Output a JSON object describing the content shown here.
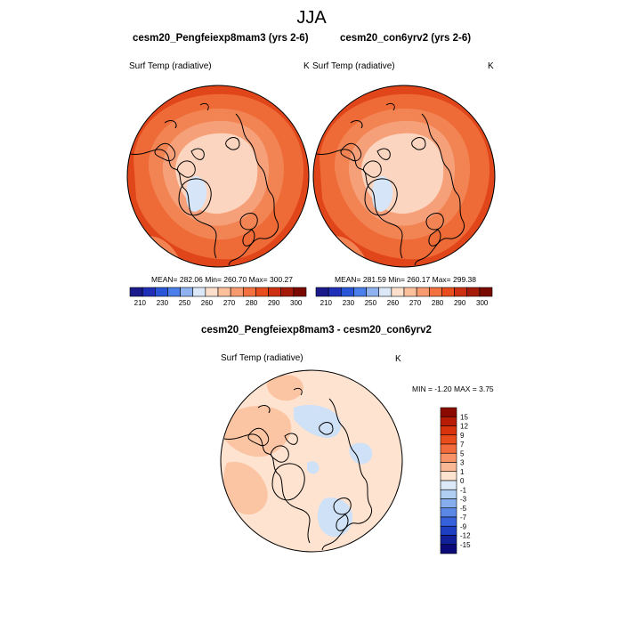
{
  "main_title": "JJA",
  "panels": [
    {
      "title": "cesm20_Pengfeiexp8mam3 (yrs 2-6)",
      "variable": "Surf Temp (radiative)",
      "units": "K",
      "stats": "MEAN= 282.06  Min= 260.70  Max= 300.27"
    },
    {
      "title": "cesm20_con6yrv2 (yrs 2-6)",
      "variable": "Surf Temp (radiative)",
      "units": "K",
      "stats": "MEAN= 281.59  Min= 260.17  Max= 299.38"
    }
  ],
  "diff_panel": {
    "title": "cesm20_Pengfeiexp8mam3 - cesm20_con6yrv2",
    "variable": "Surf Temp (radiative)",
    "units": "K",
    "minmax": "MIN =  -1.20 MAX =   3.75"
  },
  "colorbar_abs": {
    "labels": [
      "210",
      "230",
      "250",
      "260",
      "270",
      "280",
      "290",
      "300"
    ],
    "colors": [
      "#1a1a8c",
      "#1f2fb8",
      "#2a55d8",
      "#4a7ee8",
      "#8fb2f0",
      "#dbe8f8",
      "#fde0cc",
      "#fbbf9c",
      "#f79a6e",
      "#f2713f",
      "#e84d1d",
      "#cc3010",
      "#a51a08",
      "#7a0a00"
    ]
  },
  "colorbar_diff": {
    "labels": [
      "15",
      "12",
      "9",
      "7",
      "5",
      "3",
      "1",
      "0",
      "-1",
      "-3",
      "-5",
      "-7",
      "-9",
      "-12",
      "-15"
    ],
    "colors": [
      "#8b0a00",
      "#b81c05",
      "#d8330c",
      "#ea4d1c",
      "#f26b3c",
      "#f79366",
      "#fab895",
      "#fde3d0",
      "#dce9f8",
      "#b0cdf2",
      "#86aeee",
      "#5a88e6",
      "#3562da",
      "#1e3fc2",
      "#12209a",
      "#0b0a78"
    ]
  },
  "map_colors": {
    "outer_warm": "#e1461b",
    "mid_warm": "#ee6a36",
    "light_warm": "#f6a07a",
    "pale": "#fbd5bf",
    "ice_blue": "#d6e6f8",
    "diff_base": "#fde3d0",
    "diff_warm": "#fbc4a3",
    "diff_cool": "#cfe1f6"
  }
}
